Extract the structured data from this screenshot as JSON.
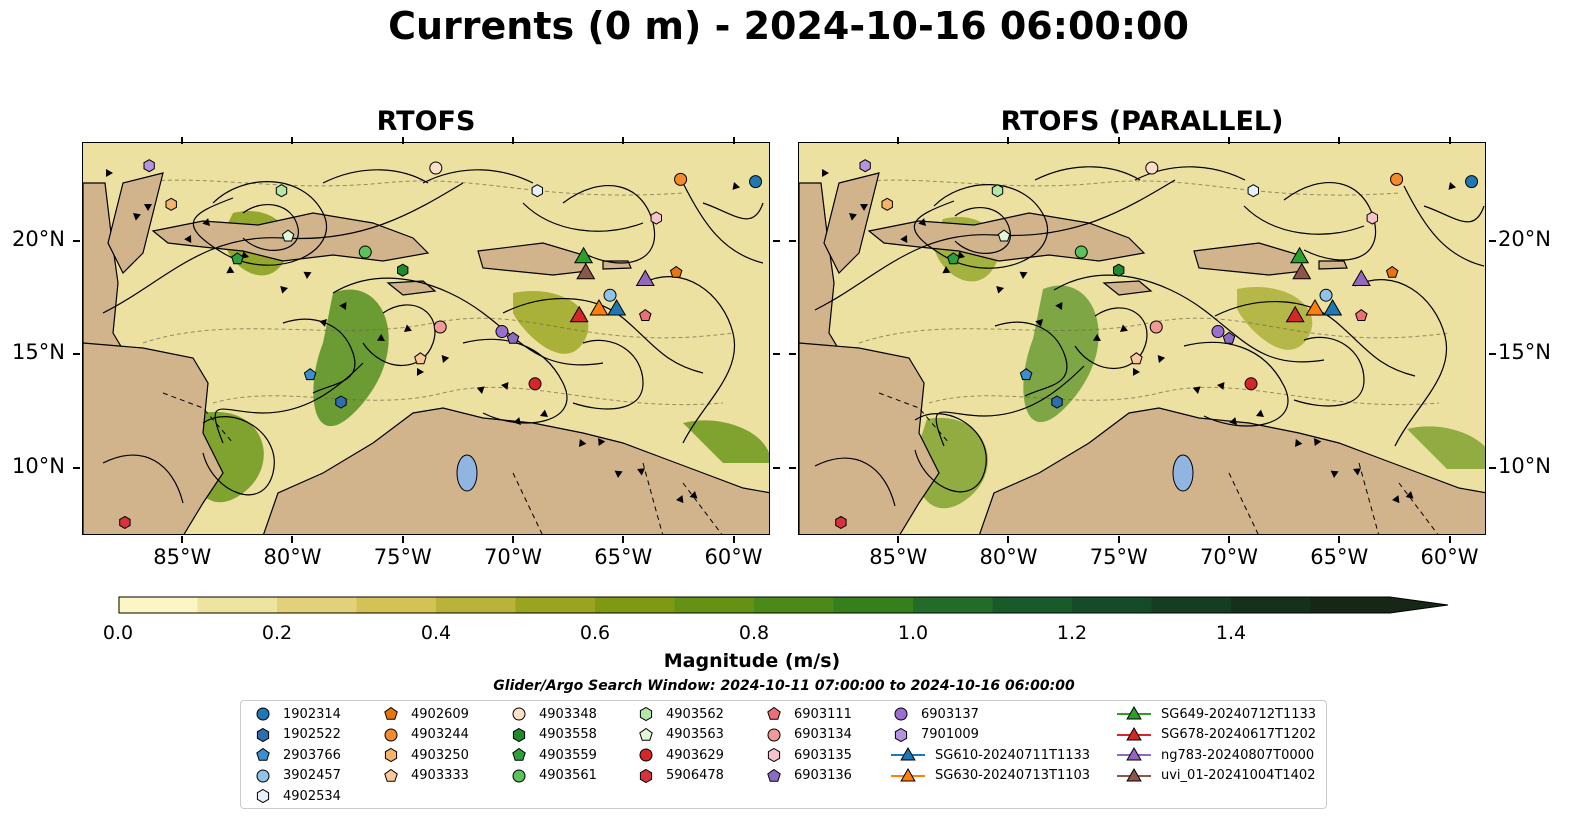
{
  "title": "Currents (0 m) - 2024-10-16 06:00:00",
  "panels": [
    {
      "title": "RTOFS"
    },
    {
      "title": "RTOFS (PARALLEL)"
    }
  ],
  "lon_labels": [
    "85°W",
    "80°W",
    "75°W",
    "70°W",
    "65°W",
    "60°W"
  ],
  "lat_labels": [
    "20°N",
    "15°N",
    "10°N"
  ],
  "colorbar": {
    "label": "Magnitude (m/s)",
    "tick_labels": [
      "0.0",
      "0.2",
      "0.4",
      "0.6",
      "0.8",
      "1.0",
      "1.2",
      "1.4"
    ],
    "colors": [
      "#fbf6c4",
      "#efe3a0",
      "#e2d17a",
      "#d4c257",
      "#b9b33a",
      "#9aa51f",
      "#7f9a12",
      "#659213",
      "#4b8a18",
      "#35801d",
      "#226b28",
      "#195a2a",
      "#154b26",
      "#143d22",
      "#15311d",
      "#162718"
    ]
  },
  "search_window": "Glider/Argo Search Window: 2024-10-11 07:00:00 to 2024-10-16 06:00:00",
  "legend": [
    {
      "label": "1902314",
      "marker": "circle",
      "color": "#1f77b4"
    },
    {
      "label": "1902522",
      "marker": "hexagon",
      "color": "#2b6fb0"
    },
    {
      "label": "2903766",
      "marker": "pentagon",
      "color": "#3a8fd0"
    },
    {
      "label": "3902457",
      "marker": "circle",
      "color": "#8ec4ea"
    },
    {
      "label": "4902534",
      "marker": "hexagon",
      "color": "#e6f2fb"
    },
    {
      "label": "4902609",
      "marker": "pentagon",
      "color": "#e8750e"
    },
    {
      "label": "4903244",
      "marker": "circle",
      "color": "#f58a2b"
    },
    {
      "label": "4903250",
      "marker": "hexagon",
      "color": "#f6b46a"
    },
    {
      "label": "4903333",
      "marker": "pentagon",
      "color": "#fbc998"
    },
    {
      "label": "4903348",
      "marker": "circle",
      "color": "#fde0c8"
    },
    {
      "label": "4903558",
      "marker": "hexagon",
      "color": "#1f8a2a"
    },
    {
      "label": "4903559",
      "marker": "pentagon",
      "color": "#2ea03a"
    },
    {
      "label": "4903561",
      "marker": "circle",
      "color": "#5cc35c"
    },
    {
      "label": "4903562",
      "marker": "hexagon",
      "color": "#b5e8a8"
    },
    {
      "label": "4903563",
      "marker": "pentagon",
      "color": "#e2f6d8"
    },
    {
      "label": "4903629",
      "marker": "circle",
      "color": "#d62728"
    },
    {
      "label": "5906478",
      "marker": "hexagon",
      "color": "#d8333c"
    },
    {
      "label": "6903111",
      "marker": "pentagon",
      "color": "#ec6f78"
    },
    {
      "label": "6903134",
      "marker": "circle",
      "color": "#f29a98"
    },
    {
      "label": "6903135",
      "marker": "hexagon",
      "color": "#f8c4cc"
    },
    {
      "label": "6903136",
      "marker": "pentagon",
      "color": "#8c6bc4"
    },
    {
      "label": "6903137",
      "marker": "circle",
      "color": "#9a6fcf"
    },
    {
      "label": "7901009",
      "marker": "hexagon",
      "color": "#b692e0"
    },
    {
      "label": "SG610-20240711T1133",
      "marker": "triangle",
      "color": "#1f77b4",
      "line": true
    },
    {
      "label": "SG630-20240713T1103",
      "marker": "triangle",
      "color": "#ff7f0e",
      "line": true
    },
    {
      "label": "SG649-20240712T1133",
      "marker": "triangle",
      "color": "#2ca02c",
      "line": true
    },
    {
      "label": "SG678-20240617T1202",
      "marker": "triangle",
      "color": "#d62728",
      "line": true
    },
    {
      "label": "ng783-20240807T0000",
      "marker": "triangle",
      "color": "#9467bd",
      "line": true
    },
    {
      "label": "uvi_01-20241004T1402",
      "marker": "triangle",
      "color": "#8c564b",
      "line": true
    }
  ],
  "map_markers": [
    {
      "label": "1902314",
      "lon": -59.0,
      "lat": 22.6
    },
    {
      "label": "1902522",
      "lon": -77.8,
      "lat": 12.9
    },
    {
      "label": "2903766",
      "lon": -79.2,
      "lat": 14.1
    },
    {
      "label": "3902457",
      "lon": -65.6,
      "lat": 17.6
    },
    {
      "label": "4902534",
      "lon": -68.9,
      "lat": 22.2
    },
    {
      "label": "4902609",
      "lon": -62.6,
      "lat": 18.6
    },
    {
      "label": "4903244",
      "lon": -62.4,
      "lat": 22.7
    },
    {
      "label": "4903250",
      "lon": -85.5,
      "lat": 21.6
    },
    {
      "label": "4903333",
      "lon": -74.2,
      "lat": 14.8
    },
    {
      "label": "4903348",
      "lon": -73.5,
      "lat": 23.2
    },
    {
      "label": "4903558",
      "lon": -75.0,
      "lat": 18.7
    },
    {
      "label": "4903559",
      "lon": -82.5,
      "lat": 19.2
    },
    {
      "label": "4903561",
      "lon": -76.7,
      "lat": 19.5
    },
    {
      "label": "4903562",
      "lon": -80.5,
      "lat": 22.2
    },
    {
      "label": "4903563",
      "lon": -80.2,
      "lat": 20.2
    },
    {
      "label": "4903629",
      "lon": -69.0,
      "lat": 13.7
    },
    {
      "label": "5906478",
      "lon": -87.6,
      "lat": 7.6
    },
    {
      "label": "6903111",
      "lon": -64.0,
      "lat": 16.7
    },
    {
      "label": "6903134",
      "lon": -73.3,
      "lat": 16.2
    },
    {
      "label": "6903135",
      "lon": -63.5,
      "lat": 21.0
    },
    {
      "label": "6903136",
      "lon": -70.0,
      "lat": 15.7
    },
    {
      "label": "6903137",
      "lon": -70.5,
      "lat": 16.0
    },
    {
      "label": "7901009",
      "lon": -86.5,
      "lat": 23.3
    },
    {
      "label": "SG610-20240711T1133",
      "lon": -65.3,
      "lat": 17.0
    },
    {
      "label": "SG630-20240713T1103",
      "lon": -66.1,
      "lat": 17.0
    },
    {
      "label": "SG649-20240712T1133",
      "lon": -66.8,
      "lat": 19.3
    },
    {
      "label": "SG678-20240617T1202",
      "lon": -67.0,
      "lat": 16.7
    },
    {
      "label": "ng783-20240807T0000",
      "lon": -64.0,
      "lat": 18.3
    },
    {
      "label": "uvi_01-20241004T1402",
      "lon": -66.7,
      "lat": 18.6
    }
  ],
  "map_extent": {
    "lon": [
      -89.5,
      -58.3
    ],
    "lat": [
      7.0,
      24.3
    ]
  }
}
